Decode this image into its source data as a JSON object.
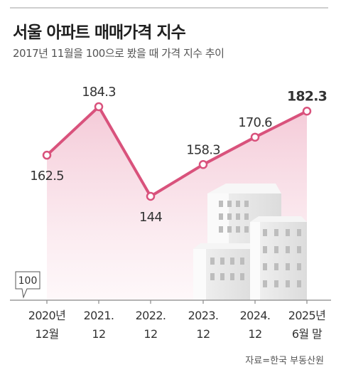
{
  "header": {
    "title": "서울 아파트 매매가격 지수",
    "subtitle": "2017년 11월을 100으로 봤을 때 가격 지수 추이"
  },
  "source": "자료=한국 부동산원",
  "colors": {
    "line": "#d9527c",
    "fill_top": "#f3c4d3",
    "fill_bottom": "#fdf3f6",
    "axis": "#888888",
    "buildings": "building-illustration"
  },
  "chart_data": {
    "type": "line",
    "title": "서울 아파트 매매가격 지수",
    "subtitle": "2017년 11월을 100으로 봤을 때 가격 지수 추이",
    "categories": [
      {
        "line1": "2020년",
        "line2": "12월"
      },
      {
        "line1": "2021.",
        "line2": "12"
      },
      {
        "line1": "2022.",
        "line2": "12"
      },
      {
        "line1": "2023.",
        "line2": "12"
      },
      {
        "line1": "2024.",
        "line2": "12"
      },
      {
        "line1": "2025년",
        "line2": "6월 말"
      }
    ],
    "values": [
      162.5,
      184.3,
      144,
      158.3,
      170.6,
      182.3
    ],
    "value_labels": [
      "162.5",
      "184.3",
      "144",
      "158.3",
      "170.6",
      "182.3"
    ],
    "highlight_index": 5,
    "baseline_label": "100",
    "baseline_value": 100,
    "ylim": [
      100,
      190
    ],
    "grid": false,
    "legend": "none"
  }
}
